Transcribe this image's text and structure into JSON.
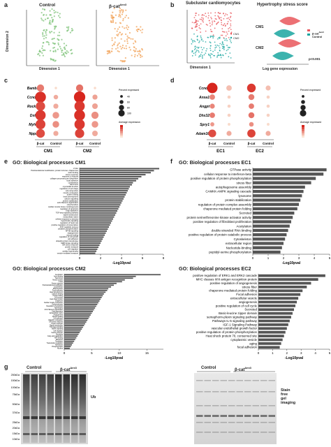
{
  "labels": [
    "a",
    "b",
    "c",
    "d",
    "e",
    "f",
    "g"
  ],
  "panel_a": {
    "titles": [
      "Control",
      "β-cat"
    ],
    "sup": "Δex3",
    "xlabel": "Dimension 1",
    "ylabel": "Dimension 2"
  },
  "panel_b": {
    "title_left": "Subcluster cardiomyocytes",
    "title_right": "Hypertrophy stress score",
    "xlabel_left": "Dimension 1",
    "xlabel_right": "Log gene expression",
    "legend_cm1": "CM1",
    "legend_cm2": "CM2",
    "row_labels": [
      "CM1",
      "CM2"
    ],
    "legend": [
      "β-cat",
      "Control"
    ],
    "pvalue": "p<0.001"
  },
  "panel_c": {
    "genes": [
      "Bambi",
      "Ccnd2",
      "Rock2",
      "Dstn",
      "Myh7",
      "Nppa"
    ],
    "groups": [
      "CM1",
      "CM2"
    ],
    "conds": [
      "β-cat",
      "Control"
    ],
    "size_legend_title": "Percent expressed",
    "size_values": [
      "40",
      "60",
      "80",
      "100"
    ],
    "color_legend_title": "Average expression",
    "dots": [
      [
        [
          0.55,
          0.55
        ],
        [
          0.1,
          0.05
        ],
        [
          0.55,
          0.6
        ],
        [
          0.1,
          0.05
        ]
      ],
      [
        [
          0.9,
          0.95
        ],
        [
          0.3,
          0.3
        ],
        [
          0.95,
          1.0
        ],
        [
          0.35,
          0.35
        ]
      ],
      [
        [
          0.75,
          0.8
        ],
        [
          0.35,
          0.3
        ],
        [
          0.85,
          0.9
        ],
        [
          0.4,
          0.35
        ]
      ],
      [
        [
          0.85,
          0.9
        ],
        [
          0.5,
          0.4
        ],
        [
          0.9,
          0.95
        ],
        [
          0.55,
          0.45
        ]
      ],
      [
        [
          0.8,
          0.85
        ],
        [
          0.5,
          0.45
        ],
        [
          0.85,
          0.9
        ],
        [
          0.5,
          0.4
        ]
      ],
      [
        [
          0.7,
          0.8
        ],
        [
          0.35,
          0.3
        ],
        [
          0.75,
          0.85
        ],
        [
          0.4,
          0.3
        ]
      ]
    ]
  },
  "panel_d": {
    "genes": [
      "Ccnd2",
      "Anxa1",
      "Angpt",
      "Dhx32",
      "Spry1",
      "Adam10"
    ],
    "groups": [
      "EC1",
      "EC2"
    ],
    "conds": [
      "β-cat",
      "Control"
    ],
    "size_legend_title": "Percent expressed",
    "color_legend_title": "Average expressed",
    "dots": [
      [
        [
          1.0,
          1.0
        ],
        [
          0.45,
          0.2
        ],
        [
          0.8,
          0.9
        ],
        [
          0.4,
          0.2
        ]
      ],
      [
        [
          0.45,
          0.5
        ],
        [
          0.2,
          0.1
        ],
        [
          0.5,
          0.55
        ],
        [
          0.2,
          0.1
        ]
      ],
      [
        [
          0.4,
          0.5
        ],
        [
          0.2,
          0.1
        ],
        [
          0.45,
          0.55
        ],
        [
          0.2,
          0.1
        ]
      ],
      [
        [
          0.45,
          0.55
        ],
        [
          0.2,
          0.1
        ],
        [
          0.5,
          0.6
        ],
        [
          0.2,
          0.1
        ]
      ],
      [
        [
          0.3,
          0.4
        ],
        [
          0.15,
          0.05
        ],
        [
          0.35,
          0.45
        ],
        [
          0.15,
          0.05
        ]
      ],
      [
        [
          0.7,
          0.8
        ],
        [
          0.4,
          0.3
        ],
        [
          0.75,
          0.85
        ],
        [
          0.4,
          0.3
        ]
      ]
    ]
  },
  "chart_data": [
    {
      "type": "bar",
      "title": "GO: Biological processes CM1",
      "xlabel": "-Log10pval",
      "xlim": [
        0,
        8
      ],
      "ticks": [
        0,
        2,
        4,
        6,
        8
      ],
      "categories": [
        "Z disc",
        "Posttranslational modification, protein turnover, chaperones",
        "actin binding",
        "stress response",
        "response to hypoxia",
        "collagen processing and deposition",
        "focal adhesion",
        "cytoskeleton",
        "sarcomere",
        "myocardial function",
        "regulation of cell shape",
        "cell-cell junction",
        "muscle contraction",
        "protein folding",
        "heart development",
        "calcium signaling",
        "protein stabilization",
        "actin filament organization",
        "mitochondrion",
        "cardiac muscle tissue morphogenesis",
        "regulation of apoptosis",
        "Golgi apparatus",
        "TGF-beta signaling pathway",
        "signal transduction",
        "extracellular matrix",
        "cellular response to stimulus",
        "hypertrophy signaling",
        "regulation of heart rate",
        "positive regulation of transcription",
        "ATP metabolic process",
        "oxidative phosphorylation",
        "NF-kB signaling",
        "angiogenesis",
        "wound healing",
        "regulation of cell growth",
        "cell adhesion",
        "ubiquitin-protein transferase",
        "MAP kinase signaling",
        "ER stress response",
        "protein transport",
        "cell migration",
        "cardiac hypertrophy",
        "vesicle-mediated transport"
      ],
      "values": [
        7.6,
        7.1,
        6.8,
        6.3,
        5.9,
        5.6,
        5.4,
        5.1,
        5.0,
        4.8,
        4.7,
        4.6,
        4.5,
        4.4,
        4.3,
        4.2,
        4.1,
        4.0,
        3.9,
        3.8,
        3.7,
        3.6,
        3.5,
        3.4,
        3.3,
        3.2,
        3.1,
        3.0,
        2.9,
        2.8,
        2.7,
        2.6,
        2.5,
        2.4,
        2.3,
        2.2,
        2.1,
        2.0,
        1.9,
        1.8,
        1.7,
        1.6,
        1.5
      ]
    },
    {
      "type": "bar",
      "title": "GO: Biological processes EC1",
      "xlabel": "-Log10pval",
      "xlim": [
        0,
        5
      ],
      "ticks": [
        0,
        1,
        2,
        3,
        4,
        5
      ],
      "categories": [
        "GTPase activity",
        "cellular response to interferon-beta",
        "positive regulation of protein phosphorylation",
        "stress fiber",
        "autophagosome assembly",
        "CAMKK-AMPK signaling cascade",
        "lysosome",
        "protein stabilization",
        "regulation of protein complex assembly",
        "chaperone mediated protein folding",
        "Secreted",
        "protein serine/threonine kinase activator activity",
        "positive regulation of fibroblast proliferation",
        "Acetylation",
        "double-stranded RNA binding",
        "positive regulation of protein catabolic process",
        "Cytoskeleton",
        "extracellular region",
        "Nucleotide-binding",
        "peptidyl-serine phosphorylation"
      ],
      "values": [
        4.8,
        4.6,
        4.1,
        3.8,
        3.4,
        3.3,
        3.2,
        3.1,
        3.0,
        2.9,
        2.7,
        2.6,
        2.5,
        2.4,
        2.3,
        2.2,
        2.1,
        2.0,
        1.9,
        1.8
      ]
    },
    {
      "type": "bar",
      "title": "GO: Biological processes CM2",
      "xlabel": "-Log10pval",
      "xlim": [
        0,
        18
      ],
      "ticks": [
        0,
        5,
        10,
        15
      ],
      "categories": [
        "Acetylation",
        "Actin-binding",
        "Sarcomere",
        "Muscle protein",
        "Z disc",
        "Stress response",
        "Posttranslational modification",
        "Cytoskeleton",
        "Mitochondrion",
        "Focal adhesion",
        "Heart development",
        "Calcium binding",
        "Protein folding",
        "Cell junction",
        "Heat shock protein",
        "Chaperone",
        "Cardiac muscle contraction",
        "Oxidoreductase",
        "Regulation of apoptosis",
        "Hypertrophy",
        "Actin filament organization",
        "Golgi apparatus",
        "Extracellular matrix",
        "Angiogenesis",
        "Wound healing",
        "Cell adhesion",
        "Ubiquitin conjugation",
        "ER stress response",
        "Protein transport",
        "Signal transduction",
        "TGF-beta signaling",
        "MAPK signaling",
        "Cell migration",
        "Vesicle transport",
        "Glycolysis",
        "Fatty acid metabolism",
        "ATP binding",
        "Ribosome",
        "Translation",
        "Transcription regulation",
        "Membrane",
        "Phosphoprotein",
        "Nucleus"
      ],
      "values": [
        17.5,
        13,
        12.5,
        11,
        10.5,
        9.5,
        9,
        8.5,
        8,
        7.8,
        7.5,
        7.2,
        7.0,
        6.8,
        6.6,
        6.4,
        6.2,
        6.0,
        5.8,
        5.6,
        5.4,
        5.2,
        5.0,
        4.8,
        4.6,
        4.4,
        4.2,
        4.0,
        3.8,
        3.6,
        3.4,
        3.2,
        3.0,
        2.8,
        2.6,
        2.4,
        2.2,
        2.0,
        1.8,
        1.6,
        1.4,
        1.2,
        1.0
      ]
    },
    {
      "type": "bar",
      "title": "GO: Biological processes EC2",
      "xlabel": "-Log10pval",
      "xlim": [
        0,
        5
      ],
      "ticks": [
        0,
        1,
        2,
        3,
        4,
        5
      ],
      "categories": [
        "positive regulation of ERK1 and ERK2 cascade",
        "MHC classes II/III antigen recognition protein",
        "positive regulation of angiogenesis",
        "stress fiber",
        "chaperone mediated protein folding",
        "Focal adhesion",
        "extracellular vesicle",
        "angiogenesis",
        "positive regulation of cell cycle",
        "Secreted",
        "Basic-leucine zipper domain",
        "semaphorin-plexin signaling pathway",
        "Pathways IL-5 signaling pathway",
        "IGF-1 Signaling Pathway",
        "vascular endothelial growth factor",
        "positive regulation of protein phosphorylation",
        "Heat shock protein 70, conserved site",
        "cytoplasmic vesicle",
        "aging",
        "focal adhesion"
      ],
      "values": [
        4.7,
        4.2,
        3.7,
        3.4,
        3.1,
        2.95,
        2.8,
        2.7,
        2.6,
        2.5,
        2.4,
        2.3,
        2.2,
        2.1,
        2.0,
        1.9,
        1.8,
        1.7,
        1.6,
        1.5
      ]
    }
  ],
  "panel_g": {
    "control": "Control",
    "bcat": "β-cat",
    "sup": "Δex3",
    "markers": [
      "250kDa",
      "150kDa",
      "100kDa",
      "75kDa",
      "50kDa",
      "37kDa",
      "25kDa",
      "20kDa",
      "15kDa",
      "10kDa"
    ],
    "ub_label": "Ub",
    "stain_label": [
      "Stain",
      "free",
      "gel",
      "imaging"
    ]
  },
  "colors": {
    "control_green": "#7fc37a",
    "bcat_orange": "#f2a35a",
    "ctrl_teal": "#1aa6a0",
    "bcat_red": "#e9575c",
    "bar": "#555555",
    "dot_high": "#d7261e",
    "dot_low": "#fbe4d4"
  }
}
